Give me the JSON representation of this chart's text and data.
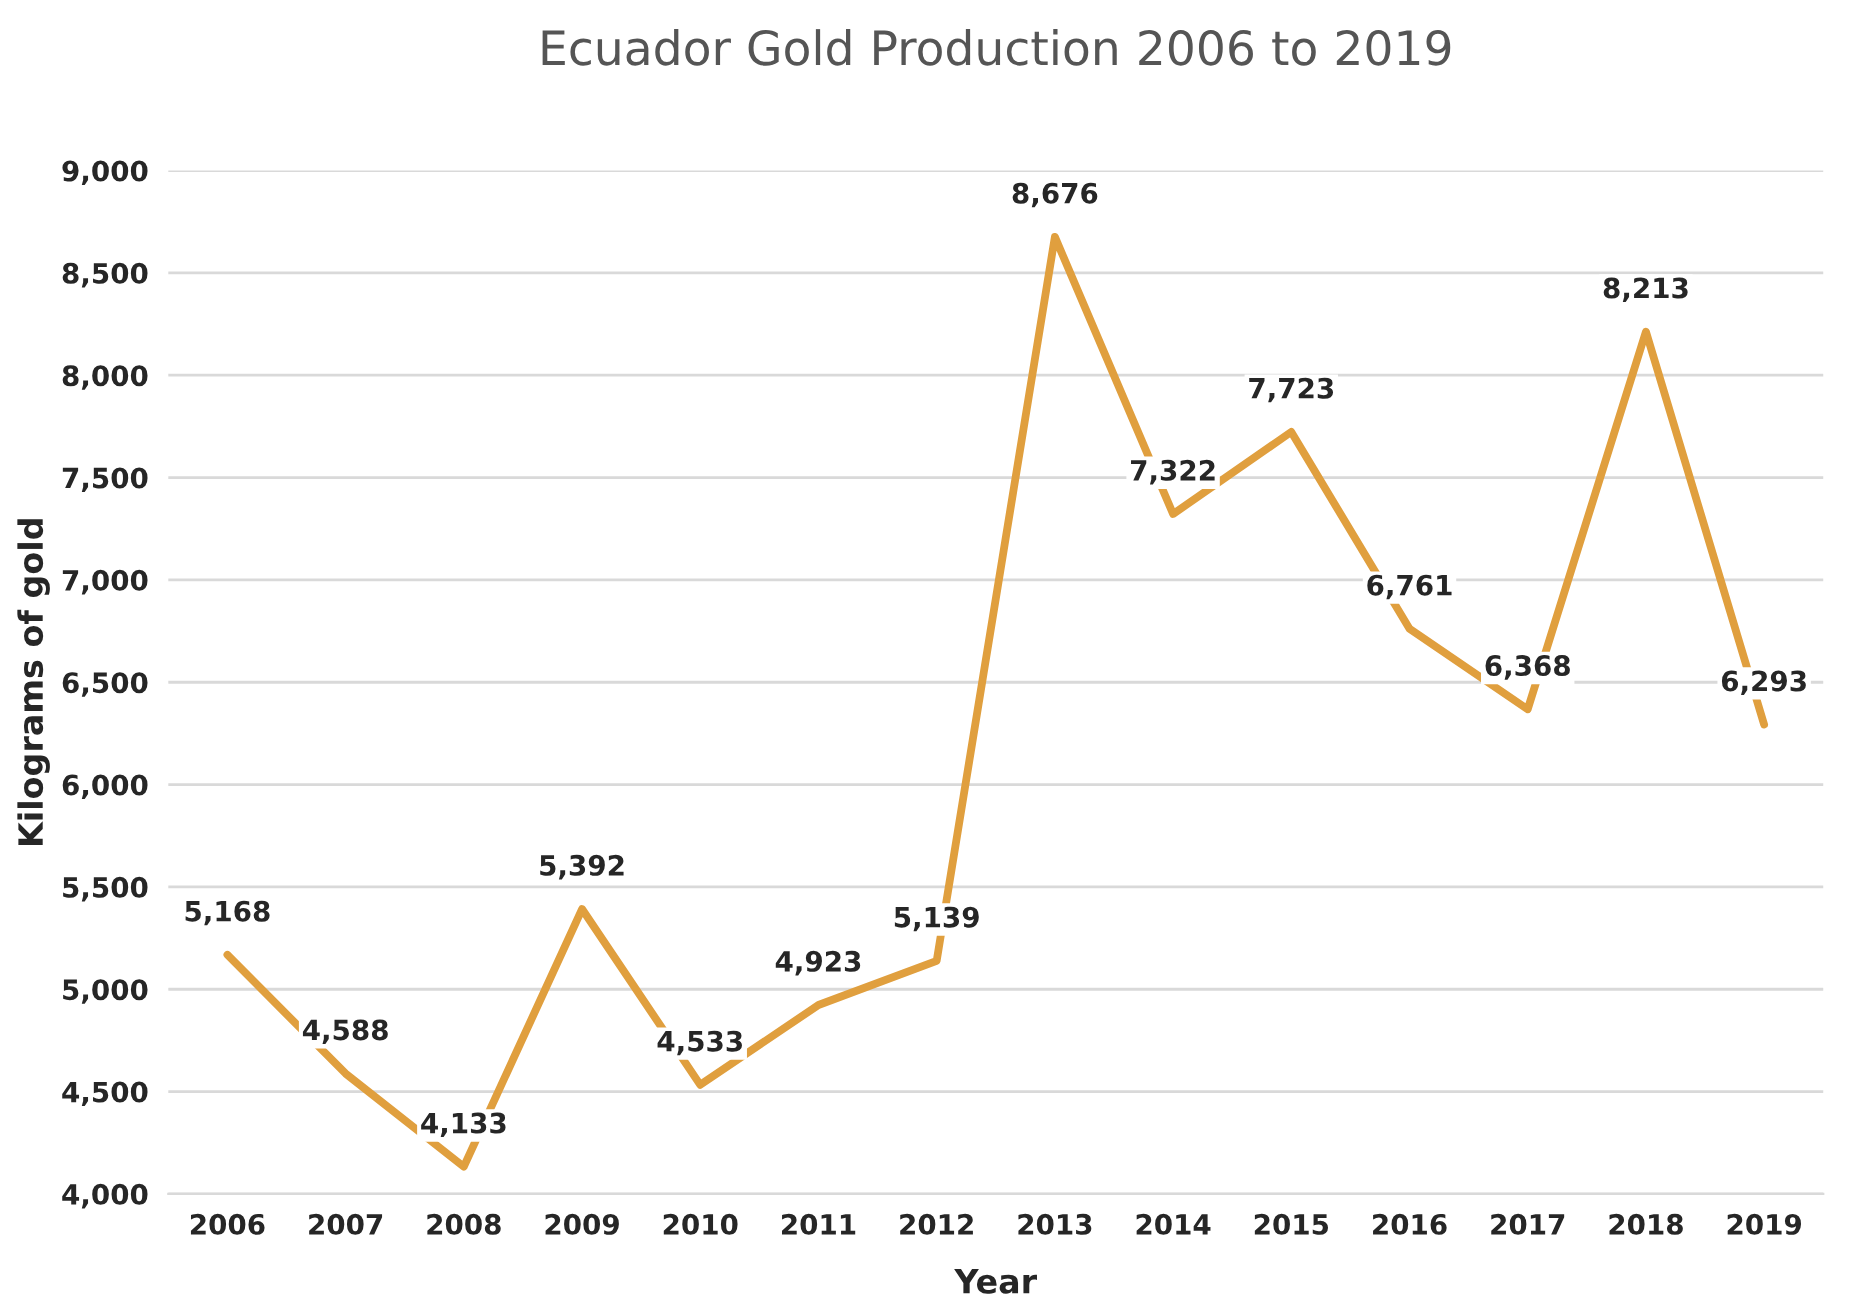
{
  "chart_data": {
    "type": "line",
    "title": "Ecuador Gold Production 2006 to 2019",
    "xlabel": "Year",
    "ylabel": "Kilograms of gold",
    "categories": [
      "2006",
      "2007",
      "2008",
      "2009",
      "2010",
      "2011",
      "2012",
      "2013",
      "2014",
      "2015",
      "2016",
      "2017",
      "2018",
      "2019"
    ],
    "series": [
      {
        "color": "#e09f3e",
        "values": [
          5168,
          4588,
          4133,
          5392,
          4533,
          4923,
          5139,
          8676,
          7322,
          7723,
          6761,
          6368,
          8213,
          6293
        ],
        "value_labels": [
          "5,168",
          "4,588",
          "4,133",
          "5,392",
          "4,533",
          "4,923",
          "5,139",
          "8,676",
          "7,322",
          "7,723",
          "6,761",
          "6,368",
          "8,213",
          "6,293"
        ]
      }
    ],
    "ylim": [
      4000,
      9000
    ],
    "yticks": [
      {
        "value": 4000,
        "label": "4,000"
      },
      {
        "value": 4500,
        "label": "4,500"
      },
      {
        "value": 5000,
        "label": "5,000"
      },
      {
        "value": 5500,
        "label": "5,500"
      },
      {
        "value": 6000,
        "label": "6,000"
      },
      {
        "value": 6500,
        "label": "6,500"
      },
      {
        "value": 7000,
        "label": "7,000"
      },
      {
        "value": 7500,
        "label": "7,500"
      },
      {
        "value": 8000,
        "label": "8,000"
      },
      {
        "value": 8500,
        "label": "8,500"
      },
      {
        "value": 9000,
        "label": "9,000"
      }
    ],
    "grid": "y",
    "marker": "none",
    "line_style": "solid"
  }
}
